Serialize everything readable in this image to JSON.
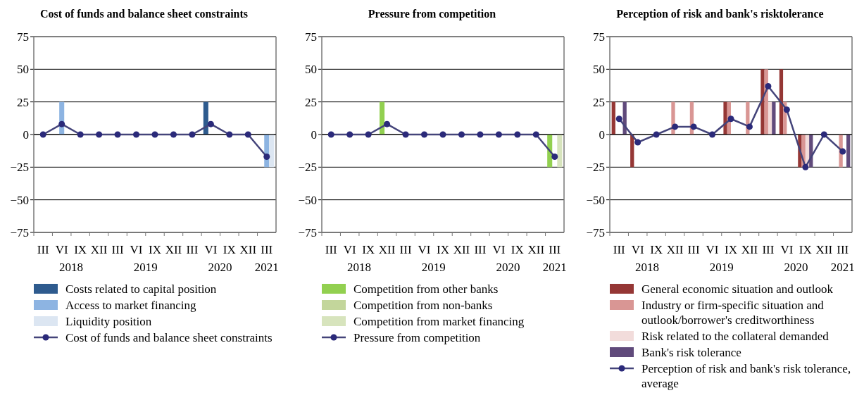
{
  "chart_data": [
    {
      "type": "bar",
      "title": "Cost of funds and balance sheet constraints",
      "categories": [
        "III",
        "VI",
        "IX",
        "XII",
        "III",
        "VI",
        "IX",
        "XII",
        "III",
        "VI",
        "IX",
        "XII",
        "III"
      ],
      "annotations": [
        "2018",
        "2019",
        "2020",
        "2021"
      ],
      "ylim": [
        -75,
        75
      ],
      "yticks": [
        75,
        50,
        25,
        0,
        {
          "value": -25,
          "label": "−25"
        },
        {
          "value": -50,
          "label": "−50"
        },
        {
          "value": -75,
          "label": "−75"
        }
      ],
      "grid": "y",
      "legend": "bottom",
      "marker": "circle",
      "series": [
        {
          "name": "Costs related to capital position",
          "color": "#2e5b8e",
          "values": [
            0,
            0,
            0,
            0,
            0,
            0,
            0,
            0,
            0,
            25,
            0,
            0,
            0
          ]
        },
        {
          "name": "Access to market financing",
          "color": "#8db4e2",
          "values": [
            0,
            25,
            0,
            0,
            0,
            0,
            0,
            0,
            0,
            0,
            0,
            0,
            -25
          ]
        },
        {
          "name": "Liquidity position",
          "color": "#dce6f2",
          "values": [
            0,
            0,
            0,
            0,
            0,
            0,
            0,
            0,
            0,
            0,
            0,
            0,
            -25
          ]
        },
        {
          "name": "Cost of funds and balance sheet constraints",
          "type": "line",
          "color": "#44447a",
          "values": [
            0,
            8,
            0,
            0,
            0,
            0,
            0,
            0,
            0,
            8,
            0,
            0,
            -17
          ]
        }
      ]
    },
    {
      "type": "bar",
      "title": "Pressure from competition",
      "categories": [
        "III",
        "VI",
        "IX",
        "XII",
        "III",
        "VI",
        "IX",
        "XII",
        "III",
        "VI",
        "IX",
        "XII",
        "III"
      ],
      "annotations": [
        "2018",
        "2019",
        "2020",
        "2021"
      ],
      "ylim": [
        -75,
        75
      ],
      "yticks": [
        75,
        50,
        25,
        0,
        {
          "value": -25,
          "label": "−25"
        },
        {
          "value": -50,
          "label": "−50"
        },
        {
          "value": -75,
          "label": "−75"
        }
      ],
      "grid": "y",
      "legend": "bottom",
      "marker": "circle",
      "series": [
        {
          "name": "Competition from other banks",
          "color": "#92d050",
          "values": [
            0,
            0,
            0,
            25,
            0,
            0,
            0,
            0,
            0,
            0,
            0,
            0,
            -25
          ]
        },
        {
          "name": "Competition from non-banks",
          "color": "#c3d69b",
          "values": [
            0,
            0,
            0,
            0,
            0,
            0,
            0,
            0,
            0,
            0,
            0,
            0,
            0
          ]
        },
        {
          "name": "Competition from market financing",
          "color": "#d7e4bd",
          "values": [
            0,
            0,
            0,
            0,
            0,
            0,
            0,
            0,
            0,
            0,
            0,
            0,
            -25
          ]
        },
        {
          "name": "Pressure from competition",
          "type": "line",
          "color": "#44447a",
          "values": [
            0,
            0,
            0,
            8,
            0,
            0,
            0,
            0,
            0,
            0,
            0,
            0,
            -17
          ]
        }
      ]
    },
    {
      "type": "bar",
      "title": "Perception of risk and bank's risktolerance",
      "categories": [
        "III",
        "VI",
        "IX",
        "XII",
        "III",
        "VI",
        "IX",
        "XII",
        "III",
        "VI",
        "IX",
        "XII",
        "III"
      ],
      "annotations": [
        "2018",
        "2019",
        "2020",
        "2021"
      ],
      "ylim": [
        -75,
        75
      ],
      "yticks": [
        75,
        50,
        25,
        0,
        {
          "value": -25,
          "label": "−25"
        },
        {
          "value": -50,
          "label": "−50"
        },
        {
          "value": -75,
          "label": "−75"
        }
      ],
      "grid": "y",
      "legend": "bottom",
      "marker": "circle",
      "series": [
        {
          "name": "General economic situation and outlook",
          "color": "#953735",
          "values": [
            25,
            -25,
            0,
            0,
            0,
            0,
            25,
            0,
            50,
            50,
            -25,
            0,
            0
          ]
        },
        {
          "name": "Industry or firm-specific situation and outlook/borrower's creditworthiness",
          "color": "#d99694",
          "values": [
            0,
            0,
            0,
            25,
            25,
            0,
            25,
            25,
            50,
            25,
            -25,
            0,
            -25
          ]
        },
        {
          "name": "Risk related to the collateral demanded",
          "color": "#f2dcdb",
          "values": [
            0,
            0,
            0,
            0,
            0,
            0,
            0,
            0,
            25,
            0,
            -25,
            0,
            0
          ]
        },
        {
          "name": "Bank's risk tolerance",
          "color": "#604a7b",
          "values": [
            25,
            0,
            0,
            0,
            0,
            0,
            0,
            0,
            25,
            0,
            -25,
            0,
            -25
          ]
        },
        {
          "name": "Perception of risk and bank's risk tolerance, average",
          "type": "line",
          "color": "#44447a",
          "values": [
            12,
            -6,
            0,
            6,
            6,
            0,
            12,
            6,
            37,
            19,
            -25,
            0,
            -13
          ]
        }
      ]
    }
  ]
}
